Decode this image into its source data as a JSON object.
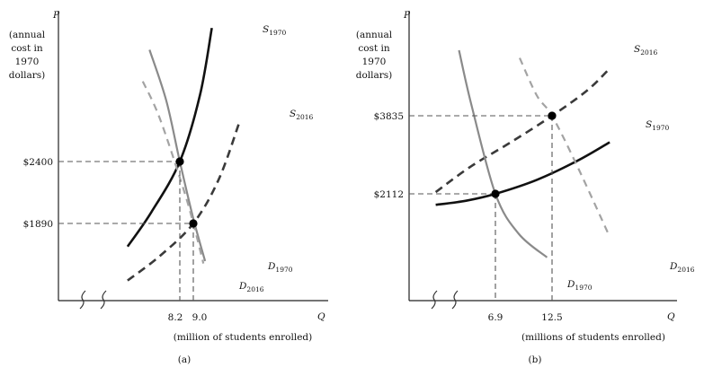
{
  "chart_data": [
    {
      "type": "line",
      "panel_label": "(a)",
      "axis": {
        "p_label": "P",
        "q_label": "Q",
        "ylabel_lines": [
          "(annual",
          "cost in",
          "1970",
          "dollars)"
        ],
        "xlabel": "(million of students enrolled)"
      },
      "x_ticks": [
        "8.2",
        "9.0"
      ],
      "y_ticks": [
        "$2400",
        "$1890"
      ],
      "equilibria": [
        {
          "name": "1970",
          "q": 8.2,
          "p": 2400
        },
        {
          "name": "2016",
          "q": 9.0,
          "p": 1890
        }
      ],
      "series": [
        {
          "name": "S",
          "sub": "1970",
          "kind": "supply",
          "style": "solid-black",
          "points": [
            [
              5.1,
              1700
            ],
            [
              6.5,
              1980
            ],
            [
              8.2,
              2400
            ],
            [
              9.4,
              2950
            ],
            [
              10.1,
              3500
            ]
          ]
        },
        {
          "name": "S",
          "sub": "2016",
          "kind": "supply",
          "style": "dashed-dark",
          "points": [
            [
              5.1,
              1420
            ],
            [
              7.0,
              1620
            ],
            [
              9.0,
              1890
            ],
            [
              10.5,
              2250
            ],
            [
              11.7,
              2710
            ]
          ]
        },
        {
          "name": "D",
          "sub": "1970",
          "kind": "demand",
          "style": "solid-gray",
          "points": [
            [
              6.4,
              3320
            ],
            [
              7.4,
              2900
            ],
            [
              8.2,
              2400
            ],
            [
              9.0,
              1930
            ],
            [
              9.7,
              1580
            ]
          ]
        },
        {
          "name": "D",
          "sub": "2016",
          "kind": "demand",
          "style": "dashed-gray",
          "points": [
            [
              6.0,
              3060
            ],
            [
              7.0,
              2760
            ],
            [
              8.4,
              2180
            ],
            [
              9.0,
              1890
            ],
            [
              9.6,
              1560
            ]
          ]
        }
      ]
    },
    {
      "type": "line",
      "panel_label": "(b)",
      "axis": {
        "p_label": "P",
        "q_label": "Q",
        "ylabel_lines": [
          "(annual",
          "cost in",
          "1970",
          "dollars)"
        ],
        "xlabel": "(millions of students enrolled)"
      },
      "x_ticks": [
        "6.9",
        "12.5"
      ],
      "y_ticks": [
        "$3835",
        "$2112"
      ],
      "equilibria": [
        {
          "name": "1970",
          "q": 6.9,
          "p": 2112
        },
        {
          "name": "2016",
          "q": 12.5,
          "p": 3835
        }
      ],
      "series": [
        {
          "name": "S",
          "sub": "2016",
          "kind": "supply",
          "style": "dashed-dark",
          "points": [
            [
              1.0,
              2150
            ],
            [
              4.5,
              2720
            ],
            [
              8.5,
              3260
            ],
            [
              12.5,
              3835
            ],
            [
              16.0,
              4400
            ],
            [
              18.2,
              4880
            ]
          ]
        },
        {
          "name": "S",
          "sub": "1970",
          "kind": "supply",
          "style": "solid-black",
          "points": [
            [
              1.0,
              1870
            ],
            [
              4.0,
              1960
            ],
            [
              6.9,
              2112
            ],
            [
              11.0,
              2420
            ],
            [
              15.0,
              2840
            ],
            [
              18.2,
              3250
            ]
          ]
        },
        {
          "name": "D",
          "sub": "1970",
          "kind": "demand",
          "style": "solid-gray",
          "points": [
            [
              3.3,
              5280
            ],
            [
              4.5,
              4100
            ],
            [
              6.9,
              2112
            ],
            [
              9.2,
              1230
            ],
            [
              12.0,
              710
            ]
          ]
        },
        {
          "name": "D",
          "sub": "2016",
          "kind": "demand",
          "style": "dashed-gray",
          "points": [
            [
              9.3,
              5110
            ],
            [
              11.0,
              4280
            ],
            [
              12.5,
              3835
            ],
            [
              15.0,
              2720
            ],
            [
              18.0,
              1260
            ]
          ]
        }
      ]
    }
  ]
}
